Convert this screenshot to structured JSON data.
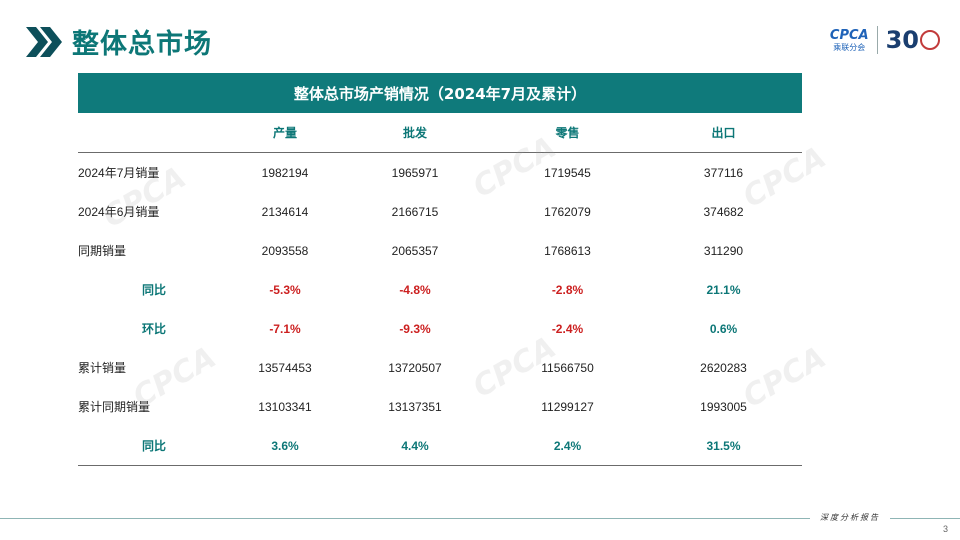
{
  "page": {
    "title": "整体总市场",
    "page_number": "3",
    "footer_tag": "深度分析报告"
  },
  "logo": {
    "brand": "CPCA",
    "brand_cn": "乘联分会",
    "anniversary": "30"
  },
  "table": {
    "title": "整体总市场产销情况（2024年7月及累计）",
    "columns": [
      "",
      "产量",
      "批发",
      "零售",
      "出口"
    ],
    "rows": [
      {
        "label": "2024年7月销量",
        "values": [
          "1982194",
          "1965971",
          "1719545",
          "377116"
        ],
        "kind": "num"
      },
      {
        "label": "2024年6月销量",
        "values": [
          "2134614",
          "2166715",
          "1762079",
          "374682"
        ],
        "kind": "num"
      },
      {
        "label": "同期销量",
        "values": [
          "2093558",
          "2065357",
          "1768613",
          "311290"
        ],
        "kind": "num"
      },
      {
        "label": "同比",
        "values": [
          "-5.3%",
          "-4.8%",
          "-2.8%",
          "21.1%"
        ],
        "kind": "pct"
      },
      {
        "label": "环比",
        "values": [
          "-7.1%",
          "-9.3%",
          "-2.4%",
          "0.6%"
        ],
        "kind": "pct"
      },
      {
        "label": "累计销量",
        "values": [
          "13574453",
          "13720507",
          "11566750",
          "2620283"
        ],
        "kind": "num"
      },
      {
        "label": "累计同期销量",
        "values": [
          "13103341",
          "13137351",
          "11299127",
          "1993005"
        ],
        "kind": "num"
      },
      {
        "label": "同比",
        "values": [
          "3.6%",
          "4.4%",
          "2.4%",
          "31.5%"
        ],
        "kind": "pct"
      }
    ]
  },
  "colors": {
    "accent": "#0f7a7b",
    "negative": "#cc1f1f",
    "positive": "#0d7777"
  }
}
